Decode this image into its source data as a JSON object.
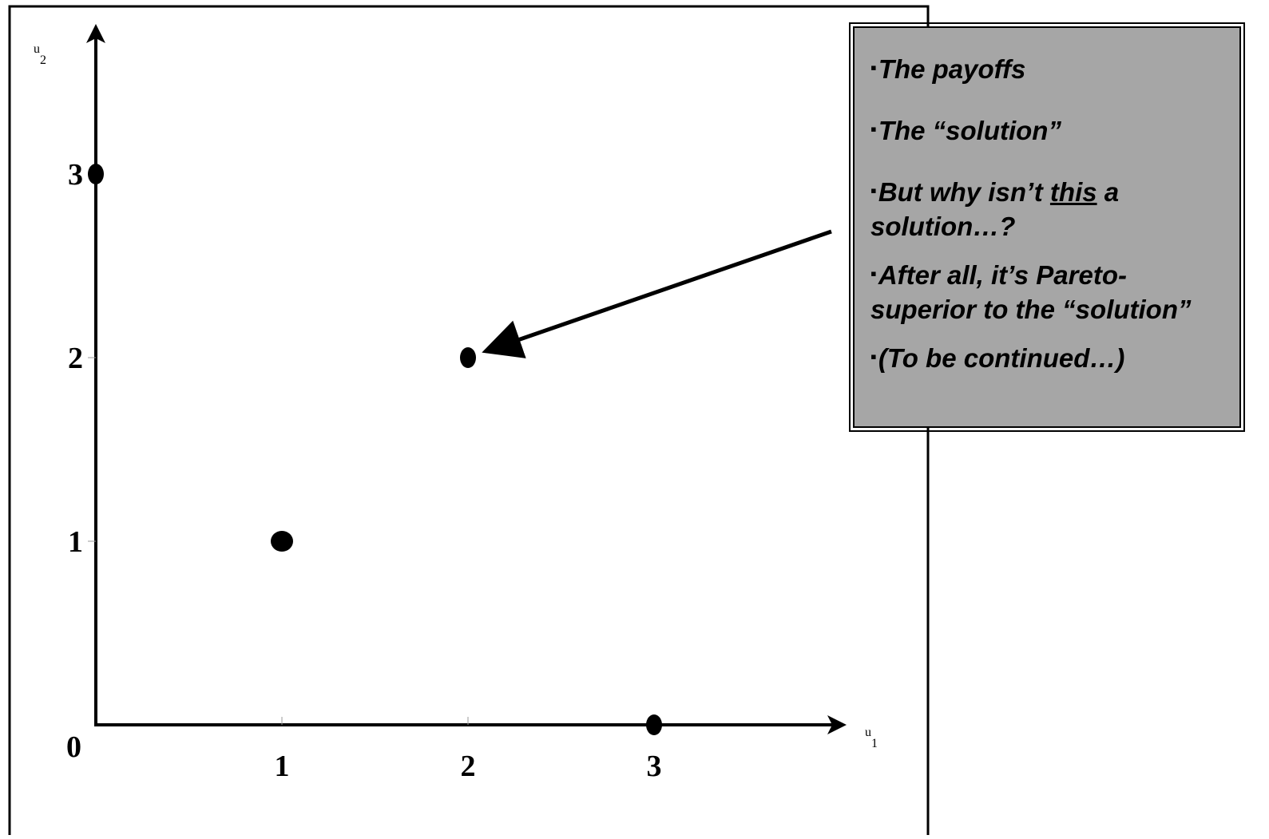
{
  "chart_data": {
    "type": "scatter",
    "title": "",
    "xlabel": {
      "base": "u",
      "sub": "1"
    },
    "ylabel": {
      "base": "u",
      "sub": "2"
    },
    "xlim": [
      0,
      4
    ],
    "ylim": [
      0,
      4
    ],
    "x_ticks": [
      "1",
      "2",
      "3"
    ],
    "y_ticks": [
      "1",
      "2",
      "3"
    ],
    "origin_label": "0",
    "grid": false,
    "points": [
      {
        "x": 0,
        "y": 3
      },
      {
        "x": 1,
        "y": 1
      },
      {
        "x": 2,
        "y": 2
      },
      {
        "x": 3,
        "y": 0
      }
    ],
    "annotation_arrow_target": {
      "x": 2,
      "y": 2
    },
    "colors": {
      "points": "#000000",
      "box": "#a6a6a6"
    }
  },
  "notes": {
    "bullet": "▪",
    "item1": "The payoffs",
    "item2": "The “solution”",
    "item3_pre": "But why isn’t ",
    "item3_underlined": "this",
    "item3_post": " a solution…?",
    "item4": "After all, it’s Pareto-superior to the “solution”",
    "item5": "(To be continued…)"
  }
}
